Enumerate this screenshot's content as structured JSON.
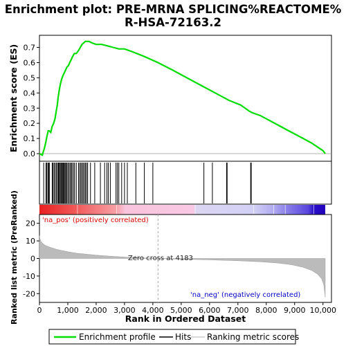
{
  "title_line1": "Enrichment plot: PRE-MRNA SPLICING%REACTOME%",
  "title_line2": "R-HSA-72163.2",
  "colors": {
    "es_line": "#00dd00",
    "hit_line": "#000000",
    "metric_fill": "#bbbbbb",
    "pos_text": "#dd0000",
    "neg_text": "#0000cc",
    "zero_dash": "#aaaaaa"
  },
  "chart_data": [
    {
      "type": "line",
      "name": "enrichment-profile",
      "ylabel": "Enrichment score (ES)",
      "xlim": [
        0,
        10300
      ],
      "ylim": [
        -0.05,
        0.78
      ],
      "yticks": [
        "0.0",
        "0.1",
        "0.2",
        "0.3",
        "0.4",
        "0.5",
        "0.6",
        "0.7"
      ],
      "grid": false,
      "x": [
        0,
        100,
        180,
        230,
        270,
        310,
        350,
        400,
        450,
        500,
        550,
        600,
        630,
        660,
        700,
        740,
        780,
        820,
        870,
        920,
        970,
        1020,
        1070,
        1120,
        1170,
        1230,
        1300,
        1380,
        1440,
        1500,
        1560,
        1620,
        1680,
        1750,
        1850,
        2000,
        2200,
        2400,
        2600,
        2800,
        3000,
        3300,
        3700,
        4183,
        4700,
        5200,
        5700,
        6200,
        6700,
        7100,
        7400,
        7500,
        7800,
        8200,
        8700,
        9200,
        9600,
        10000,
        10080
      ],
      "y": [
        0.0,
        -0.01,
        0.04,
        0.08,
        0.12,
        0.15,
        0.15,
        0.14,
        0.18,
        0.2,
        0.23,
        0.29,
        0.32,
        0.37,
        0.42,
        0.46,
        0.49,
        0.51,
        0.53,
        0.55,
        0.57,
        0.58,
        0.6,
        0.62,
        0.64,
        0.66,
        0.66,
        0.68,
        0.7,
        0.72,
        0.73,
        0.74,
        0.74,
        0.74,
        0.73,
        0.72,
        0.72,
        0.71,
        0.7,
        0.69,
        0.69,
        0.67,
        0.64,
        0.6,
        0.55,
        0.5,
        0.45,
        0.4,
        0.35,
        0.32,
        0.28,
        0.27,
        0.25,
        0.21,
        0.16,
        0.11,
        0.07,
        0.02,
        0.0
      ]
    },
    {
      "type": "hits",
      "name": "hits",
      "positions": [
        150,
        230,
        260,
        300,
        330,
        350,
        450,
        480,
        520,
        560,
        600,
        640,
        670,
        700,
        730,
        760,
        790,
        810,
        840,
        870,
        900,
        930,
        960,
        1000,
        1040,
        1080,
        1120,
        1150,
        1200,
        1240,
        1300,
        1380,
        1420,
        1460,
        1500,
        1540,
        1580,
        1620,
        1660,
        1700,
        1800,
        1950,
        2150,
        2300,
        2380,
        2430,
        2500,
        2700,
        2750,
        2800,
        2900,
        3000,
        3100,
        3400,
        3700,
        4000,
        5800,
        6100,
        6600,
        6620,
        7450,
        7470
      ]
    },
    {
      "type": "area",
      "name": "ranked-list-metric",
      "ylabel": "Ranked list metric (PreRanked)",
      "xlabel": "Rank in Ordered Dataset",
      "xlim": [
        0,
        10300
      ],
      "ylim": [
        -25,
        25
      ],
      "xticks": [
        "0",
        "1,000",
        "2,000",
        "3,000",
        "4,000",
        "5,000",
        "6,000",
        "7,000",
        "8,000",
        "9,000",
        "10,000"
      ],
      "yticks": [
        "20",
        "10",
        "0",
        "-10",
        "-20"
      ],
      "x": [
        0,
        20,
        60,
        120,
        200,
        300,
        450,
        600,
        800,
        1000,
        1300,
        1600,
        2000,
        2500,
        3000,
        3500,
        4183,
        5000,
        6000,
        7000,
        7800,
        8400,
        8900,
        9300,
        9600,
        9800,
        9950,
        10030,
        10080
      ],
      "y": [
        13,
        11,
        9.5,
        8.5,
        7.5,
        6.8,
        6,
        5.2,
        4.5,
        3.8,
        3,
        2.5,
        1.9,
        1.3,
        0.8,
        0.4,
        0,
        -0.4,
        -0.8,
        -1.3,
        -1.9,
        -2.6,
        -3.6,
        -5,
        -6.8,
        -8.8,
        -11.5,
        -15,
        -22
      ]
    }
  ],
  "annotations": {
    "pos_label": "'na_pos' (positively correlated)",
    "neg_label": "'na_neg' (negatively correlated)",
    "zero_cross": "Zero cross at 4183",
    "zero_cross_x": 4183
  },
  "legend": {
    "profile": "Enrichment profile",
    "hits": "Hits",
    "ranking": "Ranking metric scores"
  }
}
